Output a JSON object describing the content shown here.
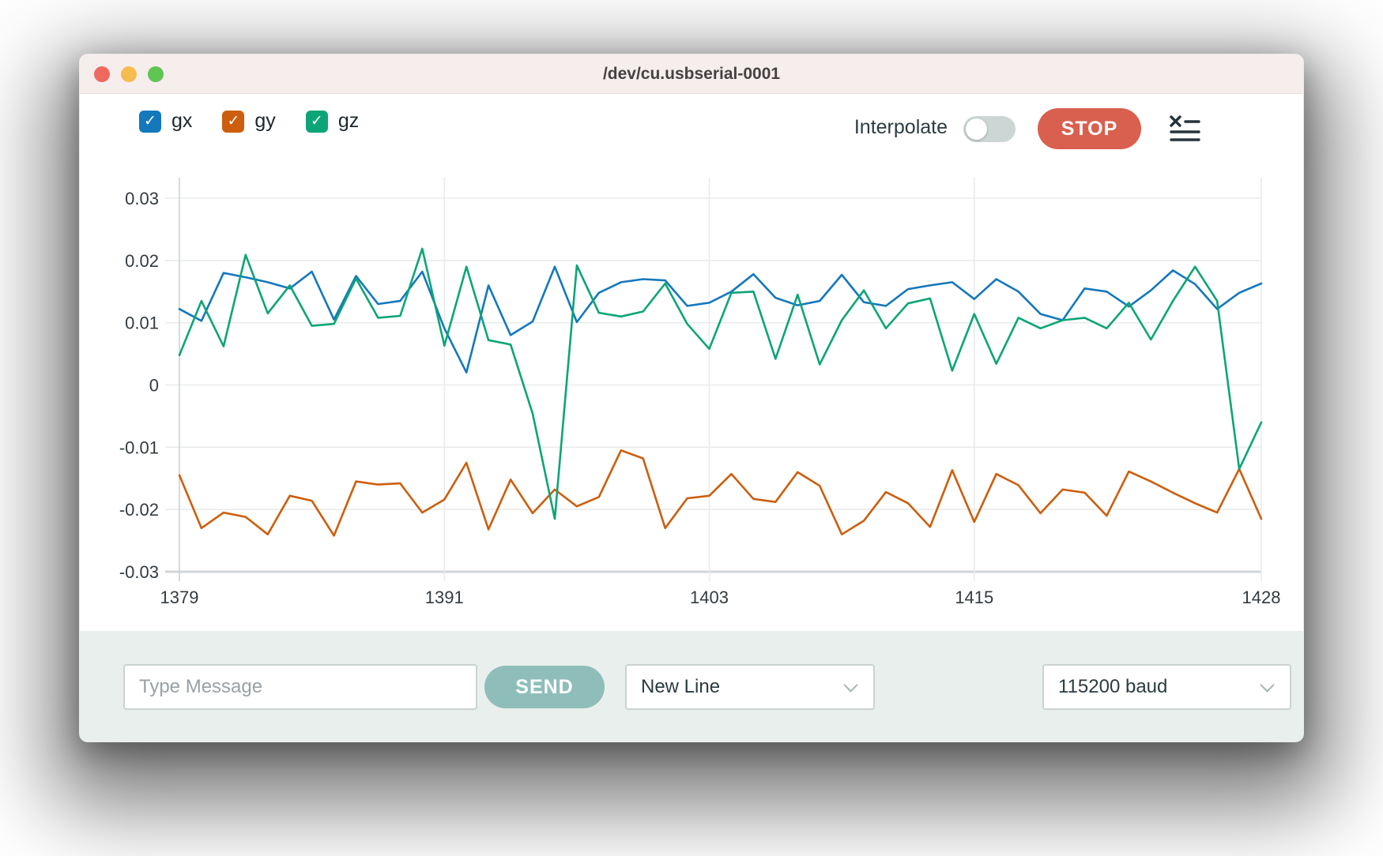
{
  "window": {
    "title": "/dev/cu.usbserial-0001"
  },
  "colors": {
    "gx": "#1478bc",
    "gy": "#cc5e0d",
    "gz": "#0ca577",
    "stop_bg": "#d9604e",
    "send_bg": "#8fbeba",
    "titlebar_bg": "#f6eeed",
    "bottombar_bg": "#e9efec",
    "grid": "#e9ebed",
    "axis": "#cbd0d3",
    "tick_text": "#333b40"
  },
  "legend": {
    "check_glyph": "✓",
    "items": [
      {
        "label": "gx",
        "color": "#1478bc",
        "checked": true
      },
      {
        "label": "gy",
        "color": "#cc5e0d",
        "checked": true
      },
      {
        "label": "gz",
        "color": "#0ca577",
        "checked": true
      }
    ]
  },
  "controls": {
    "interpolate_label": "Interpolate",
    "interpolate_on": false,
    "stop_label": "STOP"
  },
  "message_bar": {
    "input_placeholder": "Type Message",
    "send_label": "SEND",
    "line_ending": "New Line",
    "baud": "115200 baud"
  },
  "chart_data": {
    "type": "line",
    "title": "",
    "xlabel": "",
    "ylabel": "",
    "xlim": [
      1379,
      1428
    ],
    "ylim": [
      -0.03,
      0.03
    ],
    "grid": true,
    "legend_position": "top-left",
    "xticks": [
      "1379",
      "1391",
      "1403",
      "1415",
      "1428"
    ],
    "yticks": [
      "0.03",
      "0.02",
      "0.01",
      "0",
      "-0.01",
      "-0.02",
      "-0.03"
    ],
    "x": [
      1379,
      1380,
      1381,
      1382,
      1383,
      1384,
      1385,
      1386,
      1387,
      1388,
      1389,
      1390,
      1391,
      1392,
      1393,
      1394,
      1395,
      1396,
      1397,
      1398,
      1399,
      1400,
      1401,
      1402,
      1403,
      1404,
      1405,
      1406,
      1407,
      1408,
      1409,
      1410,
      1411,
      1412,
      1413,
      1414,
      1415,
      1416,
      1417,
      1418,
      1419,
      1420,
      1421,
      1422,
      1423,
      1424,
      1425,
      1426,
      1427,
      1428
    ],
    "series": [
      {
        "name": "gx",
        "color": "#1478bc",
        "values": [
          0.0122,
          0.0103,
          0.018,
          0.0173,
          0.0165,
          0.0155,
          0.0182,
          0.0105,
          0.0175,
          0.013,
          0.0135,
          0.0182,
          0.0091,
          0.002,
          0.016,
          0.008,
          0.0102,
          0.019,
          0.0101,
          0.0148,
          0.0165,
          0.017,
          0.0168,
          0.0127,
          0.0132,
          0.015,
          0.0178,
          0.014,
          0.0128,
          0.0135,
          0.0177,
          0.0133,
          0.0127,
          0.0154,
          0.016,
          0.0165,
          0.0138,
          0.017,
          0.015,
          0.0114,
          0.0104,
          0.0155,
          0.015,
          0.0126,
          0.0152,
          0.0184,
          0.0162,
          0.0122,
          0.0148,
          0.0163
        ]
      },
      {
        "name": "gy",
        "color": "#cc5e0d",
        "values": [
          -0.0145,
          -0.023,
          -0.0205,
          -0.0212,
          -0.024,
          -0.0178,
          -0.0186,
          -0.0242,
          -0.0155,
          -0.016,
          -0.0158,
          -0.0205,
          -0.0184,
          -0.0125,
          -0.0232,
          -0.0152,
          -0.0206,
          -0.0168,
          -0.0195,
          -0.018,
          -0.0105,
          -0.0118,
          -0.023,
          -0.0182,
          -0.0178,
          -0.0143,
          -0.0183,
          -0.0188,
          -0.014,
          -0.0162,
          -0.024,
          -0.0218,
          -0.0172,
          -0.019,
          -0.0228,
          -0.0137,
          -0.022,
          -0.0143,
          -0.0161,
          -0.0206,
          -0.0168,
          -0.0173,
          -0.021,
          -0.0139,
          -0.0155,
          -0.0173,
          -0.019,
          -0.0205,
          -0.0135,
          -0.0215
        ]
      },
      {
        "name": "gz",
        "color": "#0ca577",
        "values": [
          0.0048,
          0.0135,
          0.0062,
          0.0209,
          0.0115,
          0.016,
          0.0095,
          0.0098,
          0.0171,
          0.0108,
          0.0111,
          0.0219,
          0.0063,
          0.019,
          0.0072,
          0.0065,
          -0.0046,
          -0.0215,
          0.0192,
          0.0116,
          0.011,
          0.0118,
          0.0163,
          0.0098,
          0.0058,
          0.0148,
          0.015,
          0.0042,
          0.0145,
          0.0033,
          0.0104,
          0.0152,
          0.0091,
          0.0131,
          0.0139,
          0.0023,
          0.0114,
          0.0034,
          0.0108,
          0.0091,
          0.0104,
          0.0108,
          0.0091,
          0.0132,
          0.0073,
          0.0135,
          0.019,
          0.0135,
          -0.0135,
          -0.006
        ]
      }
    ]
  }
}
